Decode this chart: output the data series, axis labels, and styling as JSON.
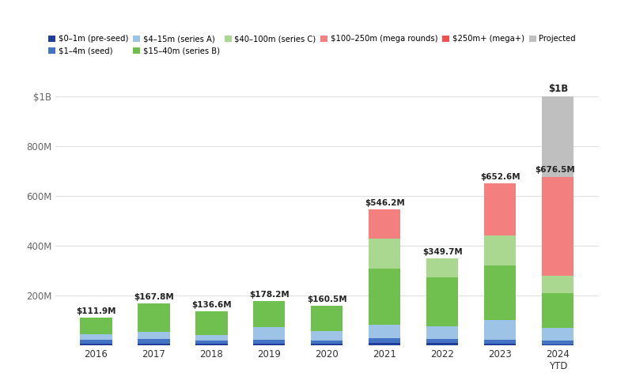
{
  "years": [
    "2016",
    "2017",
    "2018",
    "2019",
    "2020",
    "2021",
    "2022",
    "2023",
    "2024\nYTD"
  ],
  "totals_label": [
    "$111.9M",
    "$167.8M",
    "$136.6M",
    "$178.2M",
    "$160.5M",
    "$546.2M",
    "$349.7M",
    "$652.6M",
    "$676.5M"
  ],
  "total_2024_projected_label": "$1B",
  "layers": {
    "pre_seed": [
      8,
      8,
      7,
      8,
      7,
      10,
      10,
      8,
      6
    ],
    "seed": [
      15,
      18,
      13,
      16,
      13,
      20,
      18,
      15,
      14
    ],
    "series_a": [
      22,
      30,
      22,
      50,
      40,
      55,
      50,
      80,
      50
    ],
    "series_b": [
      67,
      112,
      95,
      104,
      100,
      225,
      195,
      220,
      140
    ],
    "series_c": [
      0,
      0,
      0,
      0,
      0,
      120,
      77,
      120,
      70
    ],
    "mega_rounds": [
      0,
      0,
      0,
      0,
      0,
      116,
      0,
      210,
      397
    ],
    "mega_plus": [
      0,
      0,
      0,
      0,
      0,
      0,
      0,
      0,
      0
    ],
    "projected": [
      0,
      0,
      0,
      0,
      0,
      0,
      0,
      0,
      323
    ]
  },
  "colors": {
    "pre_seed": "#1f3d99",
    "seed": "#4472c4",
    "series_a": "#9dc3e6",
    "series_b": "#70c050",
    "series_c": "#aad890",
    "mega_rounds": "#f47f7f",
    "mega_plus": "#f05050",
    "projected": "#c0bfbf"
  },
  "layer_keys": [
    "pre_seed",
    "seed",
    "series_a",
    "series_b",
    "series_c",
    "mega_rounds",
    "mega_plus",
    "projected"
  ],
  "legend_labels": [
    "$0–1m (pre-seed)",
    "$1–4m (seed)",
    "$4–15m (series A)",
    "$15–40m (series B)",
    "$40–100m (series C)",
    "$100–250m (mega rounds)",
    "$250m+ (mega+)",
    "Projected"
  ],
  "ylim_max": 1080,
  "yticks": [
    200,
    400,
    600,
    800,
    1000
  ],
  "ytick_labels": [
    "200M",
    "400M",
    "600M",
    "800M",
    "$1B"
  ],
  "background_color": "#ffffff",
  "grid_color": "#e0e0e0",
  "annotation_color": "#222222"
}
